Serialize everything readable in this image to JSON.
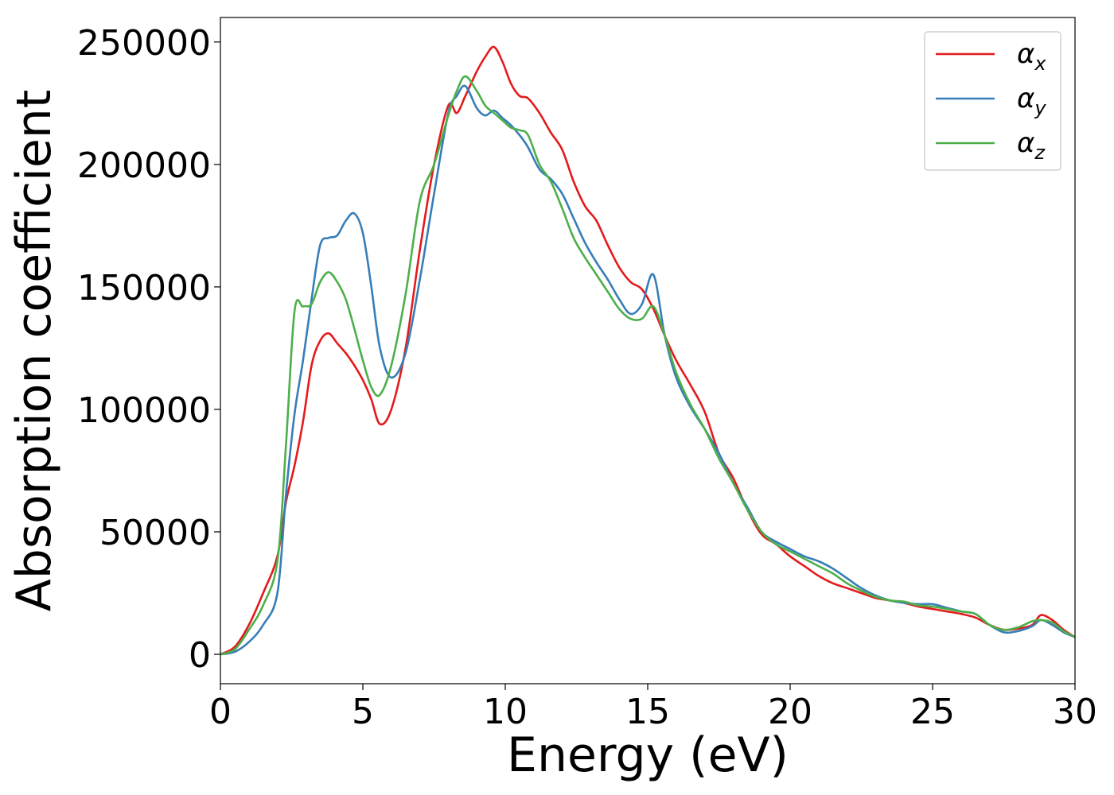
{
  "chart_data": {
    "type": "line",
    "title": "",
    "xlabel": "Energy (eV)",
    "ylabel": "Absorption coefficient",
    "xlim": [
      0,
      30
    ],
    "ylim": [
      -12000,
      260000
    ],
    "xticks": [
      0,
      5,
      10,
      15,
      20,
      25,
      30
    ],
    "xtick_labels": [
      "0",
      "5",
      "10",
      "15",
      "20",
      "25",
      "30"
    ],
    "yticks": [
      0,
      50000,
      100000,
      150000,
      200000,
      250000
    ],
    "ytick_labels": [
      "0",
      "50000",
      "100000",
      "150000",
      "200000",
      "250000"
    ],
    "grid": false,
    "legend_position": "top-right",
    "series": [
      {
        "name": "α",
        "subscript": "x",
        "color": "#e41a1c",
        "x": [
          0,
          0.5,
          1,
          1.5,
          2,
          2.3,
          2.6,
          2.9,
          3.2,
          3.5,
          3.8,
          4.1,
          4.4,
          4.7,
          5,
          5.3,
          5.6,
          6,
          6.5,
          7,
          7.5,
          8,
          8.3,
          8.6,
          9,
          9.3,
          9.6,
          9.9,
          10.2,
          10.5,
          10.8,
          11.2,
          11.6,
          12,
          12.4,
          12.8,
          13.2,
          13.6,
          14,
          14.4,
          14.8,
          15.2,
          15.6,
          16,
          16.5,
          17,
          17.5,
          18,
          18.5,
          19,
          19.5,
          20,
          20.5,
          21,
          21.5,
          22,
          22.5,
          23,
          23.5,
          24,
          24.5,
          25,
          25.5,
          26,
          26.5,
          27,
          27.5,
          28,
          28.5,
          28.8,
          29.2,
          29.6,
          30
        ],
        "y": [
          0,
          3000,
          12000,
          25000,
          40000,
          62000,
          77000,
          95000,
          118000,
          128000,
          131000,
          127000,
          123000,
          118000,
          112000,
          104000,
          94000,
          100000,
          125000,
          165000,
          200000,
          224000,
          221000,
          228000,
          238000,
          244000,
          248000,
          242000,
          233000,
          228000,
          227000,
          221000,
          213000,
          206000,
          193000,
          183000,
          177000,
          167000,
          158000,
          152000,
          149000,
          141000,
          130000,
          120000,
          110000,
          99000,
          82000,
          72000,
          59000,
          49000,
          45000,
          40000,
          36000,
          32000,
          29000,
          27000,
          25000,
          23000,
          22000,
          21000,
          19500,
          18500,
          17500,
          16500,
          15000,
          12000,
          10000,
          10500,
          12000,
          16000,
          14000,
          10000,
          7000
        ]
      },
      {
        "name": "α",
        "subscript": "y",
        "color": "#377eb8",
        "x": [
          0,
          0.5,
          1,
          1.5,
          2,
          2.3,
          2.6,
          2.9,
          3.2,
          3.5,
          3.8,
          4.1,
          4.4,
          4.7,
          5,
          5.3,
          5.6,
          6,
          6.5,
          7,
          7.5,
          8,
          8.3,
          8.6,
          9,
          9.3,
          9.6,
          9.9,
          10.2,
          10.5,
          10.8,
          11.2,
          11.6,
          12,
          12.4,
          12.8,
          13.2,
          13.6,
          14,
          14.4,
          14.8,
          15.2,
          15.6,
          16,
          16.5,
          17,
          17.5,
          18,
          18.5,
          19,
          19.5,
          20,
          20.5,
          21,
          21.5,
          22,
          22.5,
          23,
          23.5,
          24,
          24.5,
          25,
          25.5,
          26,
          26.5,
          27,
          27.5,
          28,
          28.5,
          28.8,
          29.2,
          29.6,
          30
        ],
        "y": [
          0,
          1000,
          5000,
          12000,
          25000,
          65000,
          98000,
          120000,
          145000,
          167000,
          170000,
          171000,
          177000,
          180000,
          172000,
          150000,
          125000,
          113000,
          123000,
          153000,
          188000,
          221000,
          228000,
          232000,
          223000,
          220000,
          222000,
          219000,
          216000,
          212000,
          207000,
          198000,
          194000,
          188000,
          178000,
          168000,
          160000,
          153000,
          145000,
          139000,
          143000,
          155000,
          130000,
          113000,
          101000,
          92000,
          82000,
          70000,
          60000,
          50000,
          46000,
          43000,
          40000,
          38000,
          35000,
          31000,
          27000,
          24000,
          22000,
          21000,
          20500,
          20500,
          19000,
          17500,
          16500,
          12000,
          9000,
          9500,
          11500,
          14000,
          12000,
          9000,
          7000
        ]
      },
      {
        "name": "α",
        "subscript": "z",
        "color": "#4daf4a",
        "x": [
          0,
          0.5,
          1,
          1.5,
          2,
          2.3,
          2.6,
          2.9,
          3.2,
          3.5,
          3.8,
          4.1,
          4.4,
          4.7,
          5,
          5.3,
          5.6,
          6,
          6.5,
          7,
          7.5,
          8,
          8.3,
          8.6,
          9,
          9.3,
          9.6,
          9.9,
          10.2,
          10.5,
          10.8,
          11.2,
          11.6,
          12,
          12.4,
          12.8,
          13.2,
          13.6,
          14,
          14.4,
          14.8,
          15.2,
          15.6,
          16,
          16.5,
          17,
          17.5,
          18,
          18.5,
          19,
          19.5,
          20,
          20.5,
          21,
          21.5,
          22,
          22.5,
          23,
          23.5,
          24,
          24.5,
          25,
          25.5,
          26,
          26.5,
          27,
          27.5,
          28,
          28.5,
          28.8,
          29.2,
          29.6,
          30
        ],
        "y": [
          0,
          2000,
          10000,
          20000,
          38000,
          85000,
          140000,
          142000,
          143000,
          152000,
          156000,
          152000,
          145000,
          133000,
          120000,
          109000,
          106000,
          118000,
          147000,
          185000,
          200000,
          220000,
          230000,
          236000,
          230000,
          224000,
          221000,
          218000,
          215000,
          214000,
          212000,
          200000,
          193000,
          182000,
          170000,
          162000,
          155000,
          148000,
          141000,
          137000,
          137000,
          142000,
          130000,
          115000,
          102000,
          92000,
          80000,
          70000,
          59000,
          50000,
          45000,
          42000,
          39000,
          36000,
          33000,
          29000,
          26000,
          23500,
          22000,
          21500,
          20000,
          19500,
          18500,
          17500,
          16500,
          12000,
          10000,
          11000,
          13500,
          14000,
          13000,
          9500,
          7000
        ]
      }
    ]
  }
}
